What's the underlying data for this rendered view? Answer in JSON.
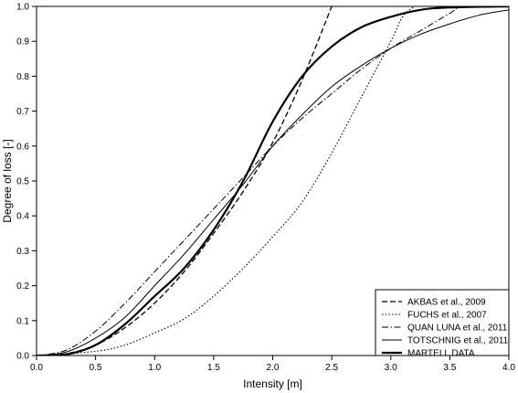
{
  "chart_data": {
    "type": "line",
    "title": "",
    "xlabel": "Intensity [m]",
    "ylabel": "Degree of loss [-]",
    "xlim": [
      0,
      4
    ],
    "ylim": [
      0,
      1
    ],
    "x_ticks": [
      "0.0",
      "0.5",
      "1.0",
      "1.5",
      "2.0",
      "2.5",
      "3.0",
      "3.5",
      "4.0"
    ],
    "y_ticks": [
      "0.0",
      "0.1",
      "0.2",
      "0.3",
      "0.4",
      "0.5",
      "0.6",
      "0.7",
      "0.8",
      "0.9",
      "1.0"
    ],
    "grid": false,
    "legend_position": "bottom-right",
    "series": [
      {
        "name": "AKBAS et al., 2009",
        "style": "dashed",
        "points": [
          [
            0,
            0
          ],
          [
            0.25,
            0.005
          ],
          [
            0.5,
            0.03
          ],
          [
            0.75,
            0.08
          ],
          [
            1.0,
            0.15
          ],
          [
            1.25,
            0.24
          ],
          [
            1.5,
            0.35
          ],
          [
            1.75,
            0.47
          ],
          [
            2.0,
            0.61
          ],
          [
            2.25,
            0.79
          ],
          [
            2.5,
            1.0
          ]
        ]
      },
      {
        "name": "FUCHS et al., 2007",
        "style": "dotted",
        "points": [
          [
            0,
            0
          ],
          [
            0.5,
            0.012
          ],
          [
            0.75,
            0.03
          ],
          [
            1.0,
            0.065
          ],
          [
            1.25,
            0.105
          ],
          [
            1.5,
            0.17
          ],
          [
            1.75,
            0.25
          ],
          [
            2.0,
            0.34
          ],
          [
            2.25,
            0.44
          ],
          [
            2.5,
            0.58
          ],
          [
            2.75,
            0.74
          ],
          [
            3.0,
            0.9
          ],
          [
            3.1,
            0.97
          ],
          [
            3.2,
            1.0
          ]
        ]
      },
      {
        "name": "QUAN LUNA et al., 2011",
        "style": "dashdot",
        "points": [
          [
            0,
            0
          ],
          [
            0.25,
            0.015
          ],
          [
            0.5,
            0.07
          ],
          [
            0.75,
            0.15
          ],
          [
            1.0,
            0.24
          ],
          [
            1.25,
            0.33
          ],
          [
            1.5,
            0.42
          ],
          [
            1.75,
            0.51
          ],
          [
            2.0,
            0.6
          ],
          [
            2.25,
            0.68
          ],
          [
            2.5,
            0.75
          ],
          [
            2.75,
            0.82
          ],
          [
            3.0,
            0.88
          ],
          [
            3.25,
            0.93
          ],
          [
            3.5,
            0.98
          ],
          [
            3.62,
            1.0
          ],
          [
            4.0,
            1.0
          ]
        ]
      },
      {
        "name": "TOTSCHNIG et al., 2011",
        "style": "thin-solid",
        "points": [
          [
            0,
            0
          ],
          [
            0.25,
            0.01
          ],
          [
            0.5,
            0.05
          ],
          [
            0.75,
            0.11
          ],
          [
            1.0,
            0.2
          ],
          [
            1.25,
            0.29
          ],
          [
            1.5,
            0.39
          ],
          [
            1.75,
            0.49
          ],
          [
            2.0,
            0.6
          ],
          [
            2.25,
            0.69
          ],
          [
            2.5,
            0.77
          ],
          [
            2.75,
            0.83
          ],
          [
            3.0,
            0.88
          ],
          [
            3.25,
            0.92
          ],
          [
            3.5,
            0.95
          ],
          [
            3.75,
            0.975
          ],
          [
            4.0,
            0.99
          ]
        ]
      },
      {
        "name": "MARTELL DATA",
        "style": "thick-solid",
        "points": [
          [
            0,
            0
          ],
          [
            0.25,
            0.003
          ],
          [
            0.5,
            0.03
          ],
          [
            0.75,
            0.09
          ],
          [
            1.0,
            0.17
          ],
          [
            1.25,
            0.25
          ],
          [
            1.5,
            0.36
          ],
          [
            1.75,
            0.5
          ],
          [
            2.0,
            0.67
          ],
          [
            2.25,
            0.8
          ],
          [
            2.5,
            0.885
          ],
          [
            2.75,
            0.94
          ],
          [
            3.0,
            0.97
          ],
          [
            3.25,
            0.99
          ],
          [
            3.5,
            0.997
          ],
          [
            4.0,
            1.0
          ]
        ]
      }
    ]
  }
}
